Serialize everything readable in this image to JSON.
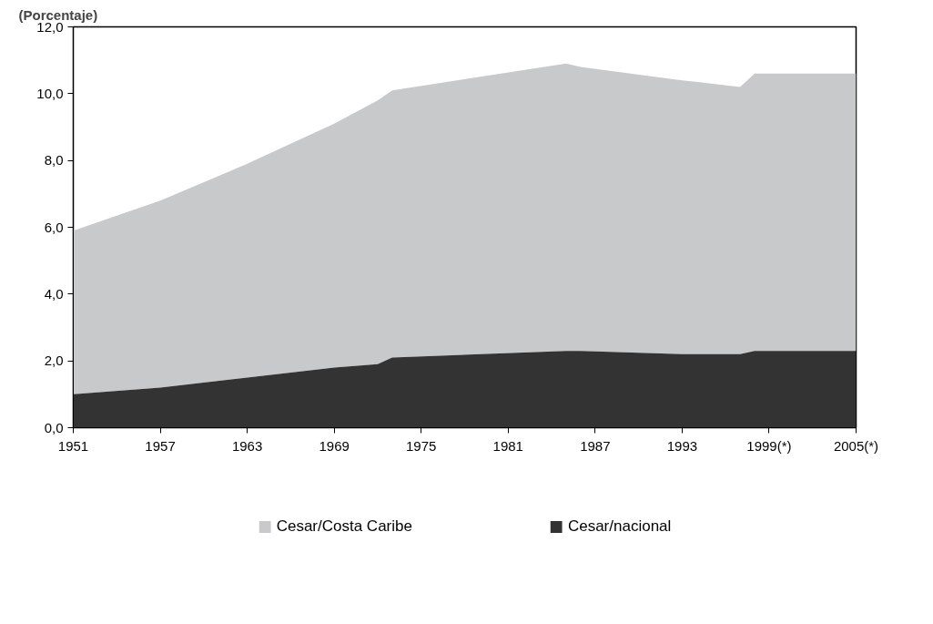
{
  "chart_data": {
    "type": "area",
    "ylabel": "(Porcentaje)",
    "x": [
      1951,
      1957,
      1963,
      1969,
      1972,
      1973,
      1985,
      1986,
      1993,
      1997,
      1998,
      2005
    ],
    "series": [
      {
        "name": "Cesar/nacional",
        "color": "#333333",
        "values": [
          1.0,
          1.2,
          1.5,
          1.8,
          1.9,
          2.1,
          2.3,
          2.3,
          2.2,
          2.2,
          2.3,
          2.3
        ]
      },
      {
        "name": "Cesar/Costa Caribe",
        "color": "#c8c9cb",
        "values": [
          5.9,
          6.8,
          7.9,
          9.1,
          9.8,
          10.1,
          10.9,
          10.8,
          10.4,
          10.2,
          10.6,
          10.6
        ]
      }
    ],
    "xlim": [
      1951,
      2005
    ],
    "xticks": [
      1951,
      1957,
      1963,
      1969,
      1975,
      1981,
      1987,
      1993,
      {
        "value": 1999,
        "label": "1999(*)"
      },
      {
        "value": 2005,
        "label": "2005(*)"
      }
    ],
    "ylim": [
      0,
      12
    ],
    "yticks": [
      {
        "value": 0,
        "label": "0,0"
      },
      {
        "value": 2,
        "label": "2,0"
      },
      {
        "value": 4,
        "label": "4,0"
      },
      {
        "value": 6,
        "label": "6,0"
      },
      {
        "value": 8,
        "label": "8,0"
      },
      {
        "value": 10,
        "label": "10,0"
      },
      {
        "value": 12,
        "label": "12,0"
      }
    ],
    "grid": false,
    "legend": "bottom"
  }
}
